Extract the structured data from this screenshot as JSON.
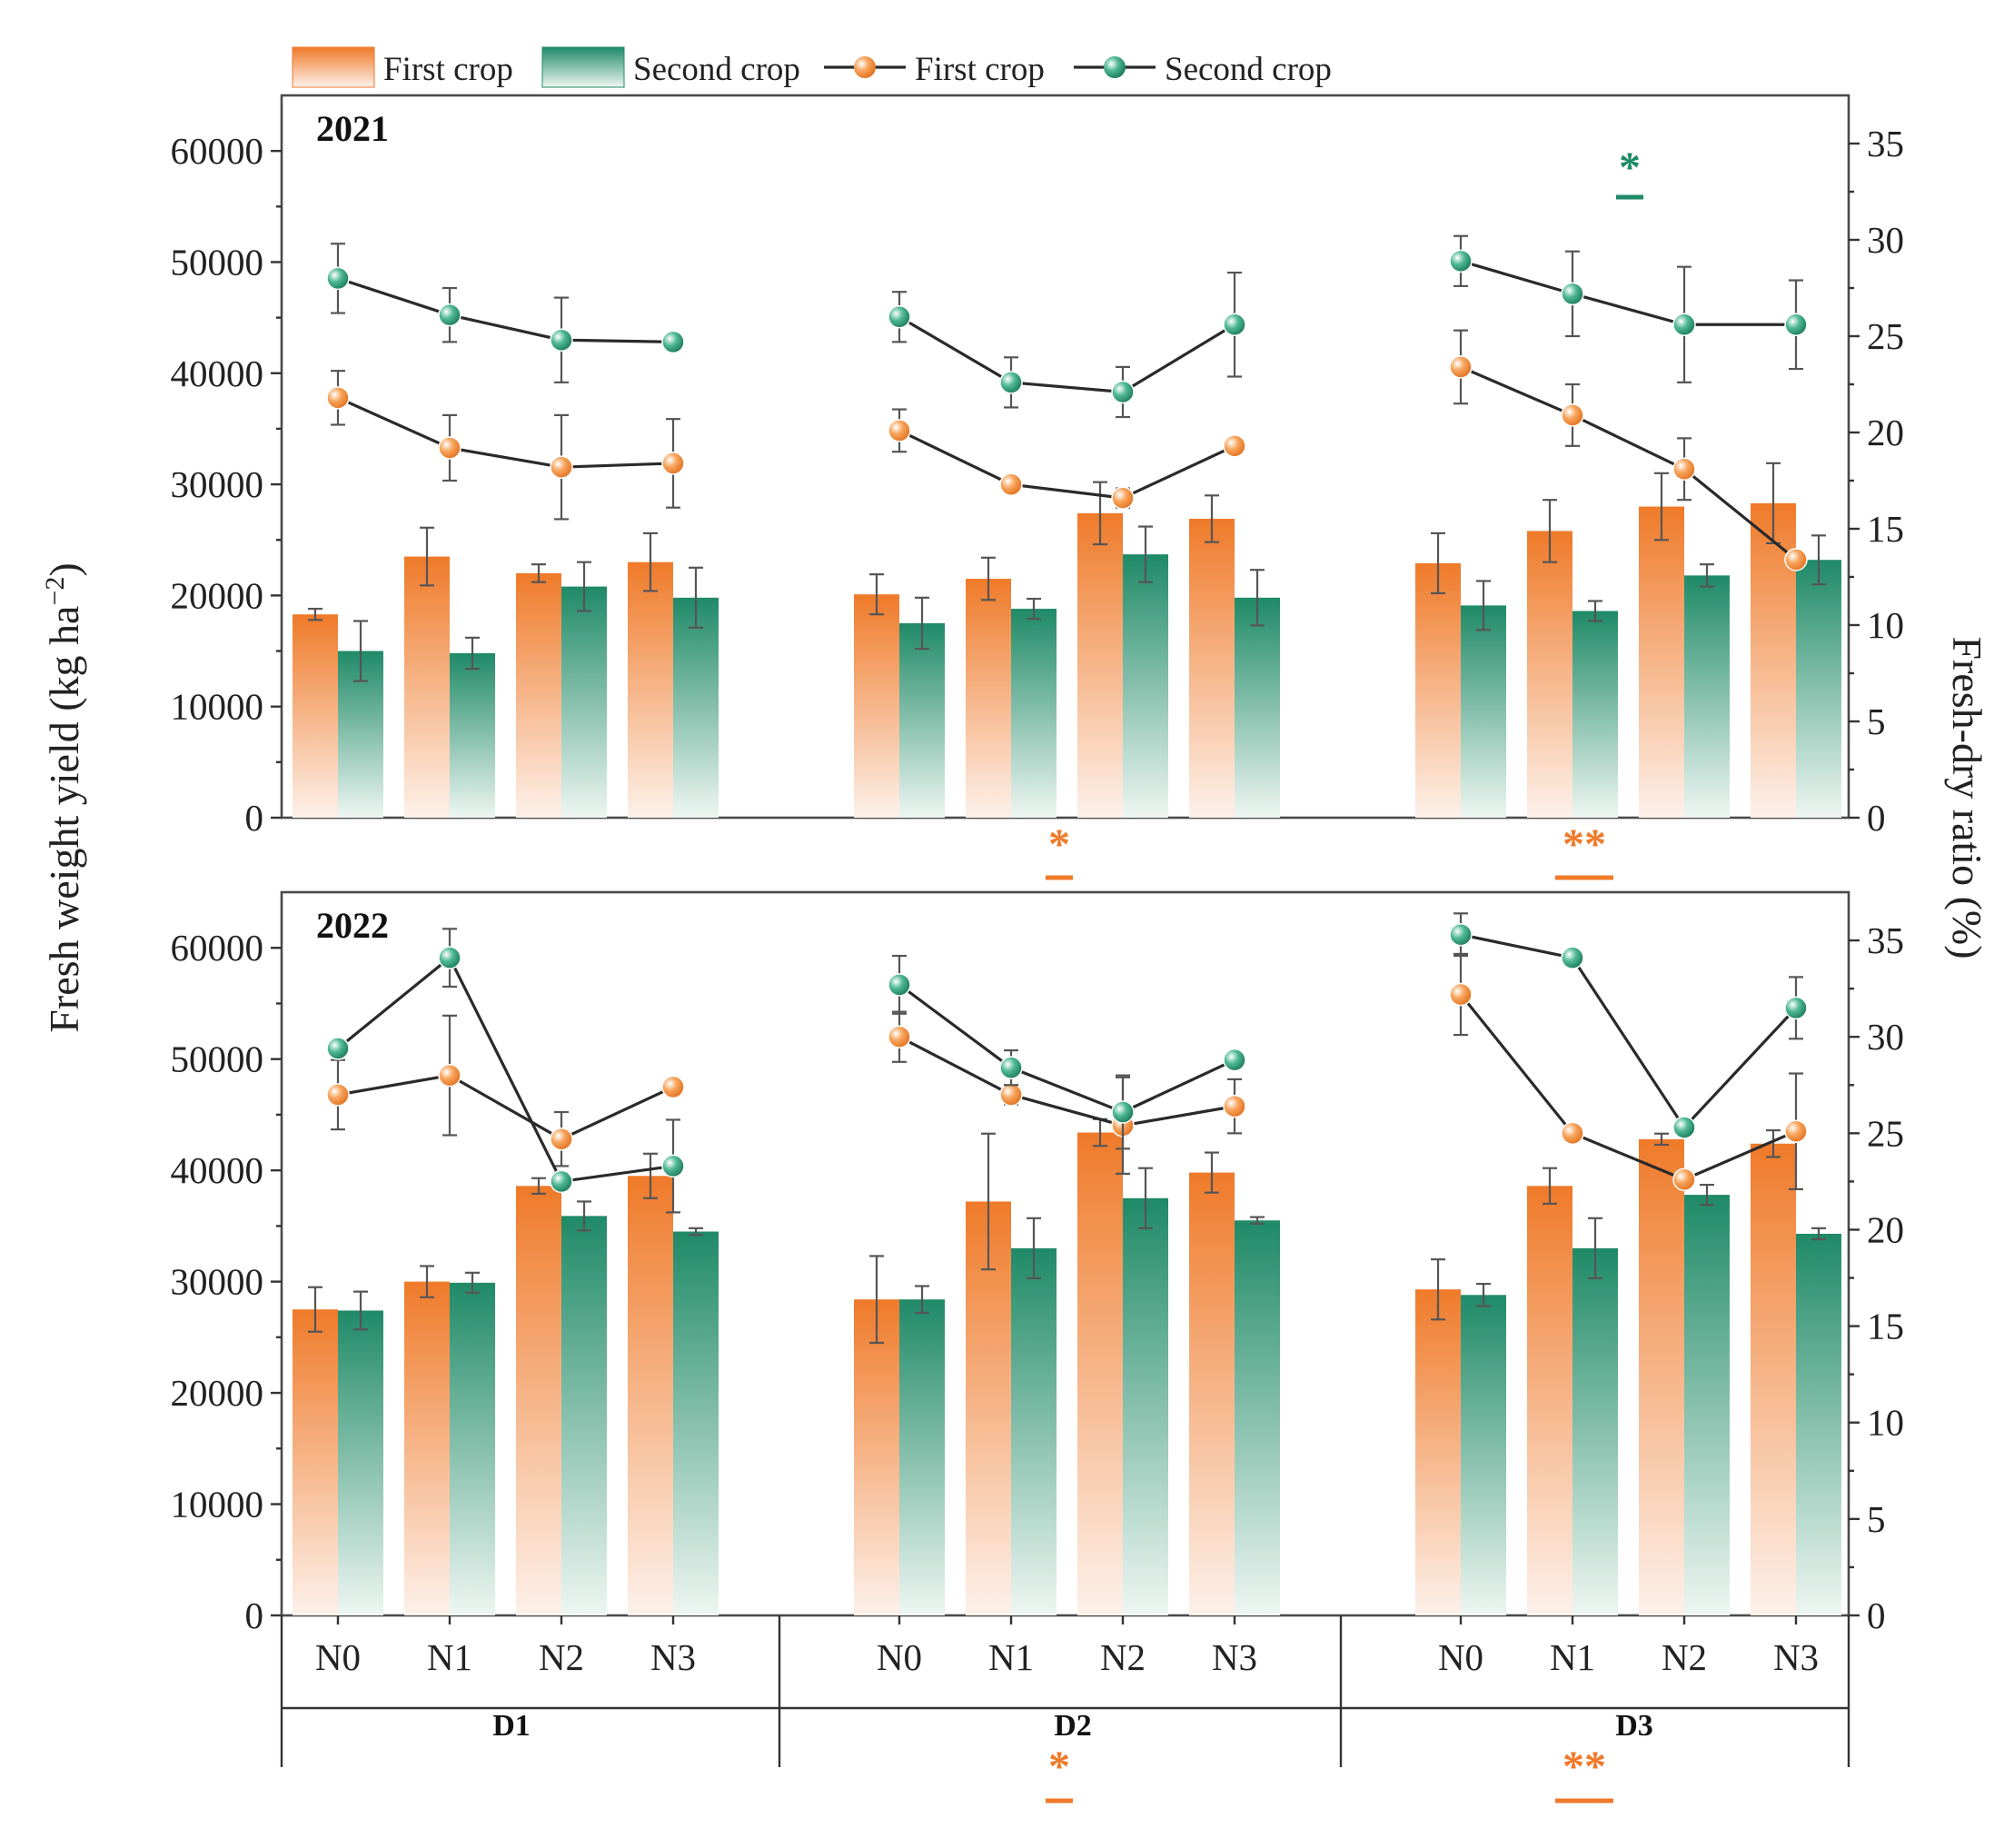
{
  "chart_data": {
    "type": "bar+line",
    "colors": {
      "first_crop": "#ef7a29",
      "second_crop": "#1f8a67",
      "first_crop_light": "#fdf1ea",
      "second_crop_light": "#eef6f2"
    },
    "legend": [
      {
        "kind": "bar",
        "series": "first_crop",
        "label": "First crop"
      },
      {
        "kind": "bar",
        "series": "second_crop",
        "label": "Second crop"
      },
      {
        "kind": "line",
        "series": "first_crop",
        "label": "First crop"
      },
      {
        "kind": "line",
        "series": "second_crop",
        "label": "Second crop"
      }
    ],
    "ylabel_left": "Fresh weight yield (kg ha",
    "ylabel_left_sup": "−2",
    "ylabel_left_close": ")",
    "ylabel_right": "Fresh-dry ratio (%)",
    "ylim_left": [
      0,
      65000
    ],
    "yticks_left": [
      0,
      10000,
      20000,
      30000,
      40000,
      50000,
      60000
    ],
    "ylim_right": [
      0,
      37.5
    ],
    "yticks_right": [
      0,
      5,
      10,
      15,
      20,
      25,
      30,
      35
    ],
    "groups": [
      "D1",
      "D2",
      "D3"
    ],
    "categories": [
      "N0",
      "N1",
      "N2",
      "N3"
    ],
    "panels": [
      {
        "year": "2021",
        "bars": {
          "first_crop": {
            "values": [
              18300,
              23500,
              22000,
              23000,
              20100,
              21500,
              27400,
              26900,
              22900,
              25800,
              28000,
              28300
            ],
            "errors": [
              500,
              2600,
              800,
              2600,
              1800,
              1900,
              2800,
              2100,
              2700,
              2800,
              3000,
              3600
            ]
          },
          "second_crop": {
            "values": [
              15000,
              14800,
              20800,
              19800,
              17500,
              18800,
              23700,
              19800,
              19100,
              18600,
              21800,
              23200
            ],
            "errors": [
              2700,
              1400,
              2200,
              2700,
              2300,
              900,
              2500,
              2500,
              2200,
              900,
              1000,
              2200
            ]
          }
        },
        "lines": {
          "first_crop": {
            "values": [
              21.8,
              19.2,
              18.2,
              18.4,
              20.1,
              17.3,
              16.6,
              19.3,
              23.4,
              20.9,
              18.1,
              13.4
            ],
            "errors": [
              1.4,
              1.7,
              2.7,
              2.3,
              1.1,
              0.3,
              0.5,
              0.3,
              1.9,
              1.6,
              1.6,
              0.3
            ]
          },
          "second_crop": {
            "values": [
              28.0,
              26.1,
              24.8,
              24.7,
              26.0,
              22.6,
              22.1,
              25.6,
              28.9,
              27.2,
              25.6,
              25.6
            ],
            "errors": [
              1.8,
              1.4,
              2.2,
              0.3,
              1.3,
              1.3,
              1.3,
              2.7,
              1.3,
              2.2,
              3.0,
              2.3
            ]
          }
        },
        "significance": [
          {
            "group": "D3",
            "text": "*",
            "series": "second_crop",
            "position": "top"
          }
        ]
      },
      {
        "year": "2022",
        "bars": {
          "first_crop": {
            "values": [
              27500,
              30000,
              38600,
              39500,
              28400,
              37200,
              43400,
              39800,
              29300,
              38600,
              42800,
              42400
            ],
            "errors": [
              2000,
              1400,
              700,
              2000,
              3900,
              6100,
              1200,
              1800,
              2700,
              1600,
              500,
              1200
            ]
          },
          "second_crop": {
            "values": [
              27400,
              29900,
              35900,
              34500,
              28400,
              33000,
              37500,
              35500,
              28800,
              33000,
              37800,
              34300
            ],
            "errors": [
              1700,
              900,
              1300,
              300,
              1200,
              2700,
              2700,
              300,
              1000,
              2700,
              900,
              500
            ]
          }
        },
        "lines": {
          "first_crop": {
            "values": [
              27.0,
              28.0,
              24.7,
              27.4,
              30.0,
              27.0,
              25.4,
              26.4,
              32.2,
              25.0,
              22.6,
              25.1
            ],
            "errors": [
              1.8,
              3.1,
              1.4,
              0.3,
              1.3,
              0.5,
              2.5,
              1.4,
              2.1,
              0.3,
              0.3,
              3.0
            ]
          },
          "second_crop": {
            "values": [
              29.4,
              34.1,
              22.5,
              23.3,
              32.7,
              28.4,
              26.1,
              28.8,
              35.3,
              34.1,
              25.3,
              31.5
            ],
            "errors": [
              0.3,
              1.5,
              0.3,
              2.4,
              1.5,
              0.9,
              1.9,
              0.3,
              1.1,
              0.3,
              0.3,
              1.6
            ]
          }
        },
        "significance": []
      }
    ],
    "between_panel_significance": [
      {
        "group": "D2",
        "text": "*",
        "series": "first_crop"
      },
      {
        "group": "D3",
        "text": "**",
        "series": "first_crop"
      }
    ],
    "bottom_significance": [
      {
        "group": "D2",
        "text": "*",
        "series": "first_crop"
      },
      {
        "group": "D3",
        "text": "**",
        "series": "first_crop"
      }
    ]
  }
}
